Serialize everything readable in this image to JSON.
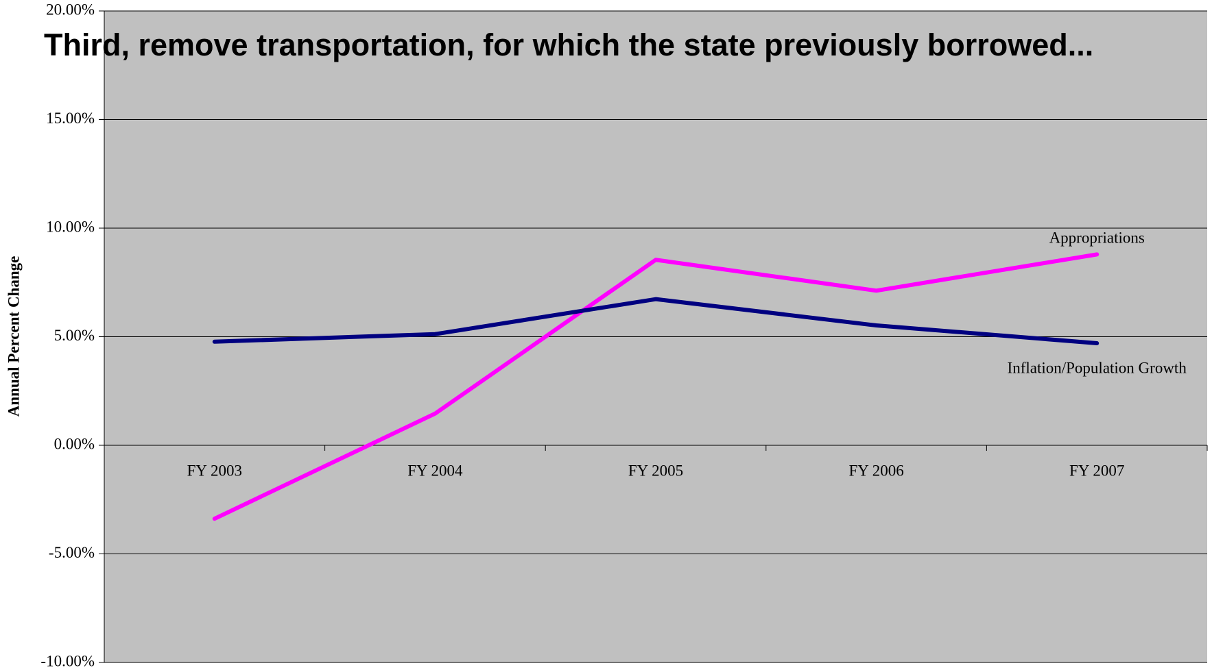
{
  "chart_data": {
    "type": "line",
    "title": "Third, remove transportation, for which the state previously borrowed...",
    "y_label": "Annual Percent Change",
    "categories": [
      "FY 2003",
      "FY 2004",
      "FY 2005",
      "FY 2006",
      "FY 2007"
    ],
    "series": [
      {
        "name": "Appropriations",
        "color": "#ff00ff",
        "values": [
          -3.38,
          1.46,
          8.54,
          7.12,
          8.79
        ]
      },
      {
        "name": "Inflation/Population Growth",
        "color": "#000080",
        "values": [
          4.77,
          5.12,
          6.73,
          5.52,
          4.7
        ]
      }
    ],
    "ylim": [
      -10,
      20
    ],
    "yticks": [
      {
        "value": -10,
        "label": "-10.00%"
      },
      {
        "value": -5,
        "label": "-5.00%"
      },
      {
        "value": 0,
        "label": "0.00%"
      },
      {
        "value": 5,
        "label": "5.00%"
      },
      {
        "value": 10,
        "label": "10.00%"
      },
      {
        "value": 15,
        "label": "15.00%"
      },
      {
        "value": 20,
        "label": "20.00%"
      }
    ],
    "grid": true,
    "background": "#c0c0c0",
    "title_color": "#ff0000"
  }
}
